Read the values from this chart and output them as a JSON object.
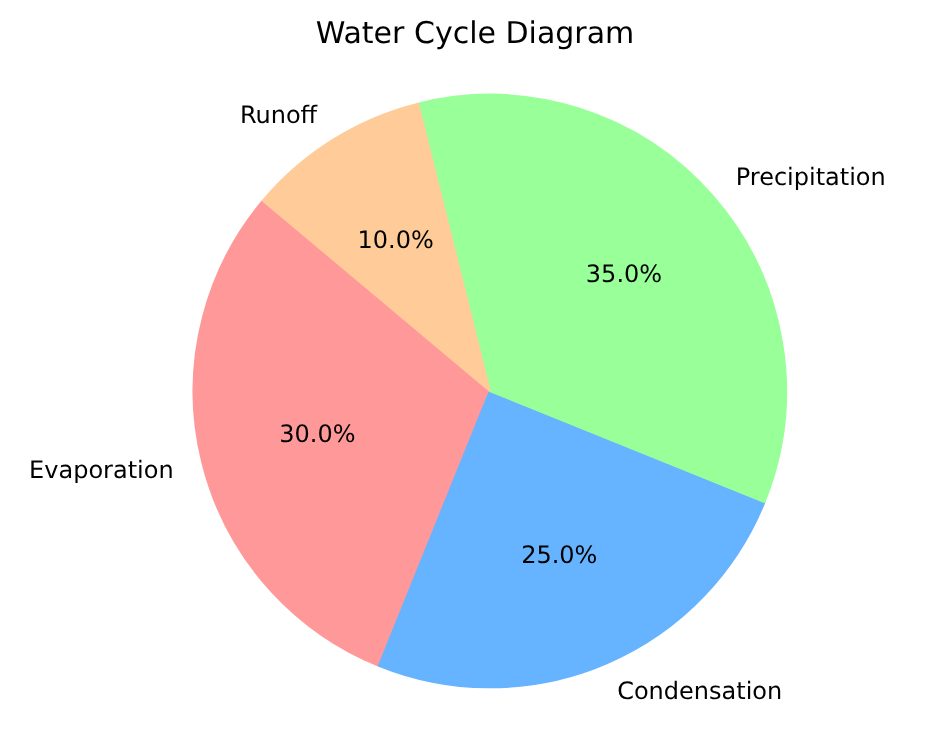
{
  "chart_data": {
    "type": "pie",
    "title": "Water Cycle Diagram",
    "categories": [
      "Evaporation",
      "Condensation",
      "Precipitation",
      "Runoff"
    ],
    "values": [
      30,
      25,
      35,
      10
    ],
    "colors": [
      "#ff9999",
      "#66b3ff",
      "#99ff99",
      "#ffcc99"
    ],
    "value_labels": [
      "30.0%",
      "25.0%",
      "35.0%",
      "10.0%"
    ]
  }
}
